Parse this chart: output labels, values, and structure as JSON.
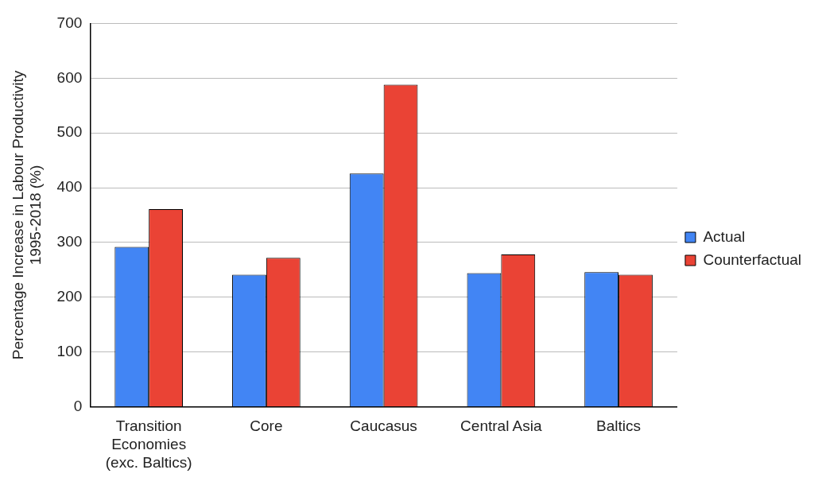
{
  "chart_data": {
    "type": "bar",
    "ylabel": "Percentage Increase in Labour Productivity 1995-2018 (%)",
    "categories": [
      "Transition Economies (exc. Baltics)",
      "Core",
      "Caucasus",
      "Central Asia",
      "Baltics"
    ],
    "series": [
      {
        "name": "Actual",
        "color": "#4285f4",
        "values": [
          292,
          241,
          426,
          244,
          246
        ]
      },
      {
        "name": "Counterfactual",
        "color": "#ea4335",
        "values": [
          361,
          272,
          588,
          278,
          241
        ]
      }
    ],
    "ylim": [
      0,
      700
    ],
    "yticks": [
      0,
      100,
      200,
      300,
      400,
      500,
      600,
      700
    ],
    "grid": "y",
    "legend": "right"
  }
}
